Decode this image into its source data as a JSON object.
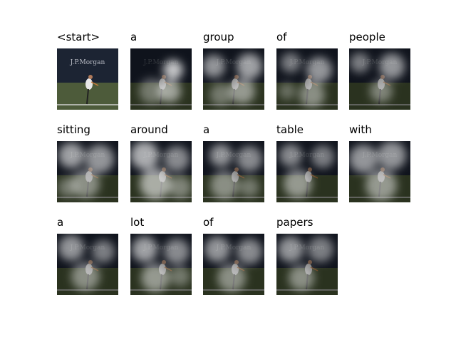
{
  "caption_words": [
    "<start>",
    "a",
    "group",
    "of",
    "people",
    "sitting",
    "around",
    "a",
    "table",
    "with",
    "a",
    "lot",
    "of",
    "papers"
  ],
  "image": {
    "banner_text": "J.P.Morgan",
    "colors": {
      "stands": "#1c2433",
      "court": "#4d5b3a",
      "court_line": "#d8d8d8",
      "player": "#e8e8e8",
      "overlay_bright": "#ffffff",
      "overlay_dark": "#000000"
    }
  }
}
